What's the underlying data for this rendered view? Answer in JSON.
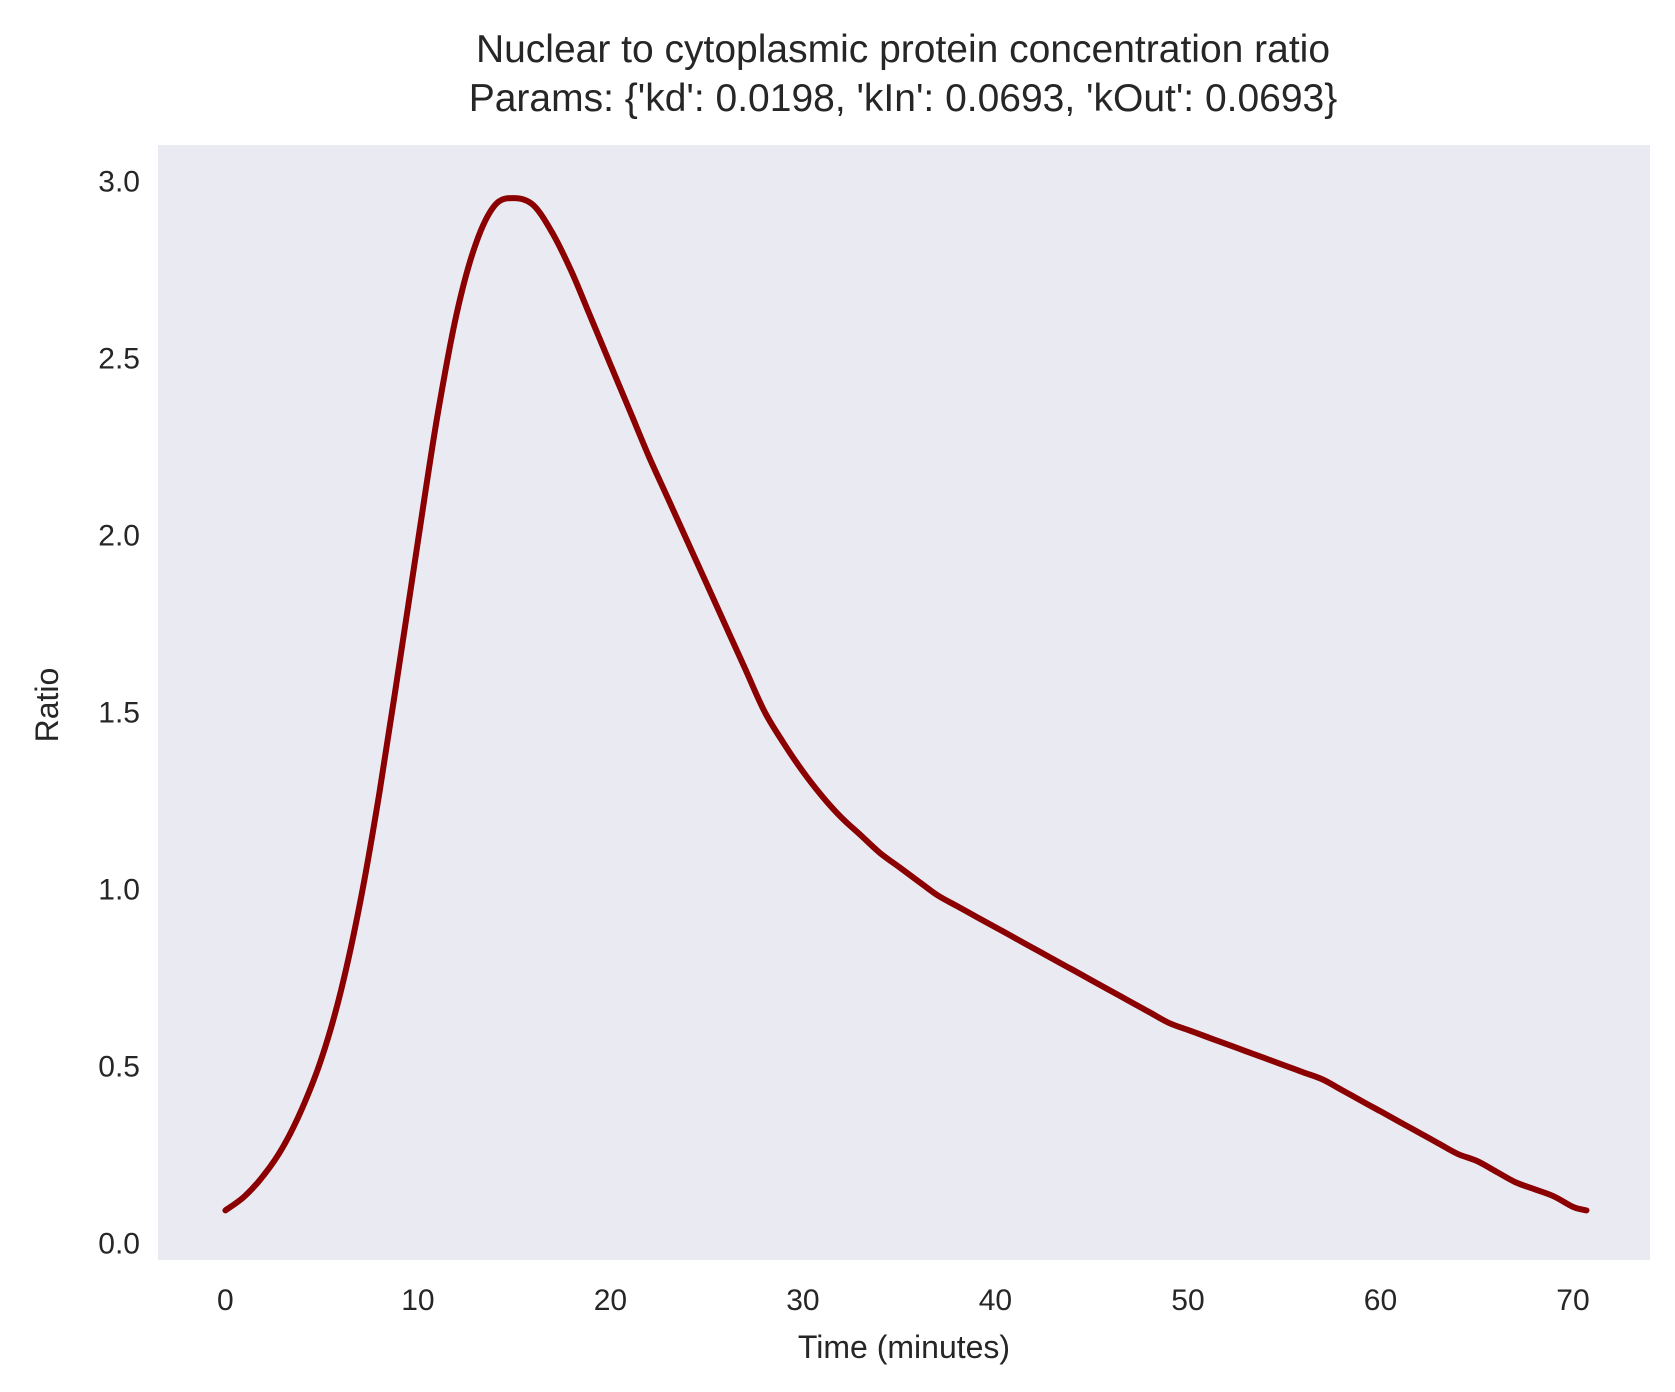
{
  "chart_data": {
    "type": "line",
    "title": "Nuclear to cytoplasmic protein concentration ratio",
    "subtitle": "Params: {'kd': 0.0198, 'kIn': 0.0693, 'kOut': 0.0693}",
    "xlabel": "Time (minutes)",
    "ylabel": "Ratio",
    "xlim": [
      -3.5,
      74.0
    ],
    "ylim": [
      -0.05,
      3.1
    ],
    "xticks": [
      0,
      10,
      20,
      30,
      40,
      50,
      60,
      70
    ],
    "xtick_labels": [
      "0",
      "10",
      "20",
      "30",
      "40",
      "50",
      "60",
      "70"
    ],
    "yticks": [
      0.0,
      0.5,
      1.0,
      1.5,
      2.0,
      2.5,
      3.0
    ],
    "ytick_labels": [
      "0.0",
      "0.5",
      "1.0",
      "1.5",
      "2.0",
      "2.5",
      "3.0"
    ],
    "grid": false,
    "legend": "none",
    "background_color": "#eaeaf2",
    "line_color": "#8b0000",
    "series": [
      {
        "x": [
          0,
          1,
          2,
          3,
          4,
          5,
          6,
          7,
          8,
          9,
          10,
          11,
          12,
          13,
          14,
          15,
          16,
          17,
          18,
          19,
          20,
          21,
          22,
          23,
          24,
          25,
          26,
          27,
          28,
          29,
          30,
          31,
          32,
          33,
          34,
          35,
          36,
          37,
          38,
          39,
          40,
          41,
          42,
          43,
          44,
          45,
          46,
          47,
          48,
          49,
          50,
          51,
          52,
          53,
          54,
          55,
          56,
          57,
          58,
          59,
          60,
          61,
          62,
          63,
          64,
          65,
          66,
          67,
          68,
          69,
          70,
          70.7
        ],
        "y": [
          0.09,
          0.13,
          0.19,
          0.27,
          0.38,
          0.52,
          0.71,
          0.96,
          1.27,
          1.62,
          1.98,
          2.33,
          2.62,
          2.82,
          2.93,
          2.95,
          2.93,
          2.85,
          2.74,
          2.61,
          2.48,
          2.35,
          2.22,
          2.1,
          1.98,
          1.86,
          1.74,
          1.62,
          1.5,
          1.41,
          1.33,
          1.26,
          1.2,
          1.15,
          1.1,
          1.06,
          1.02,
          0.98,
          0.95,
          0.92,
          0.89,
          0.86,
          0.83,
          0.8,
          0.77,
          0.74,
          0.71,
          0.68,
          0.65,
          0.62,
          0.6,
          0.58,
          0.56,
          0.54,
          0.52,
          0.5,
          0.48,
          0.46,
          0.43,
          0.4,
          0.37,
          0.34,
          0.31,
          0.28,
          0.25,
          0.23,
          0.2,
          0.17,
          0.15,
          0.13,
          0.1,
          0.09
        ]
      }
    ]
  }
}
